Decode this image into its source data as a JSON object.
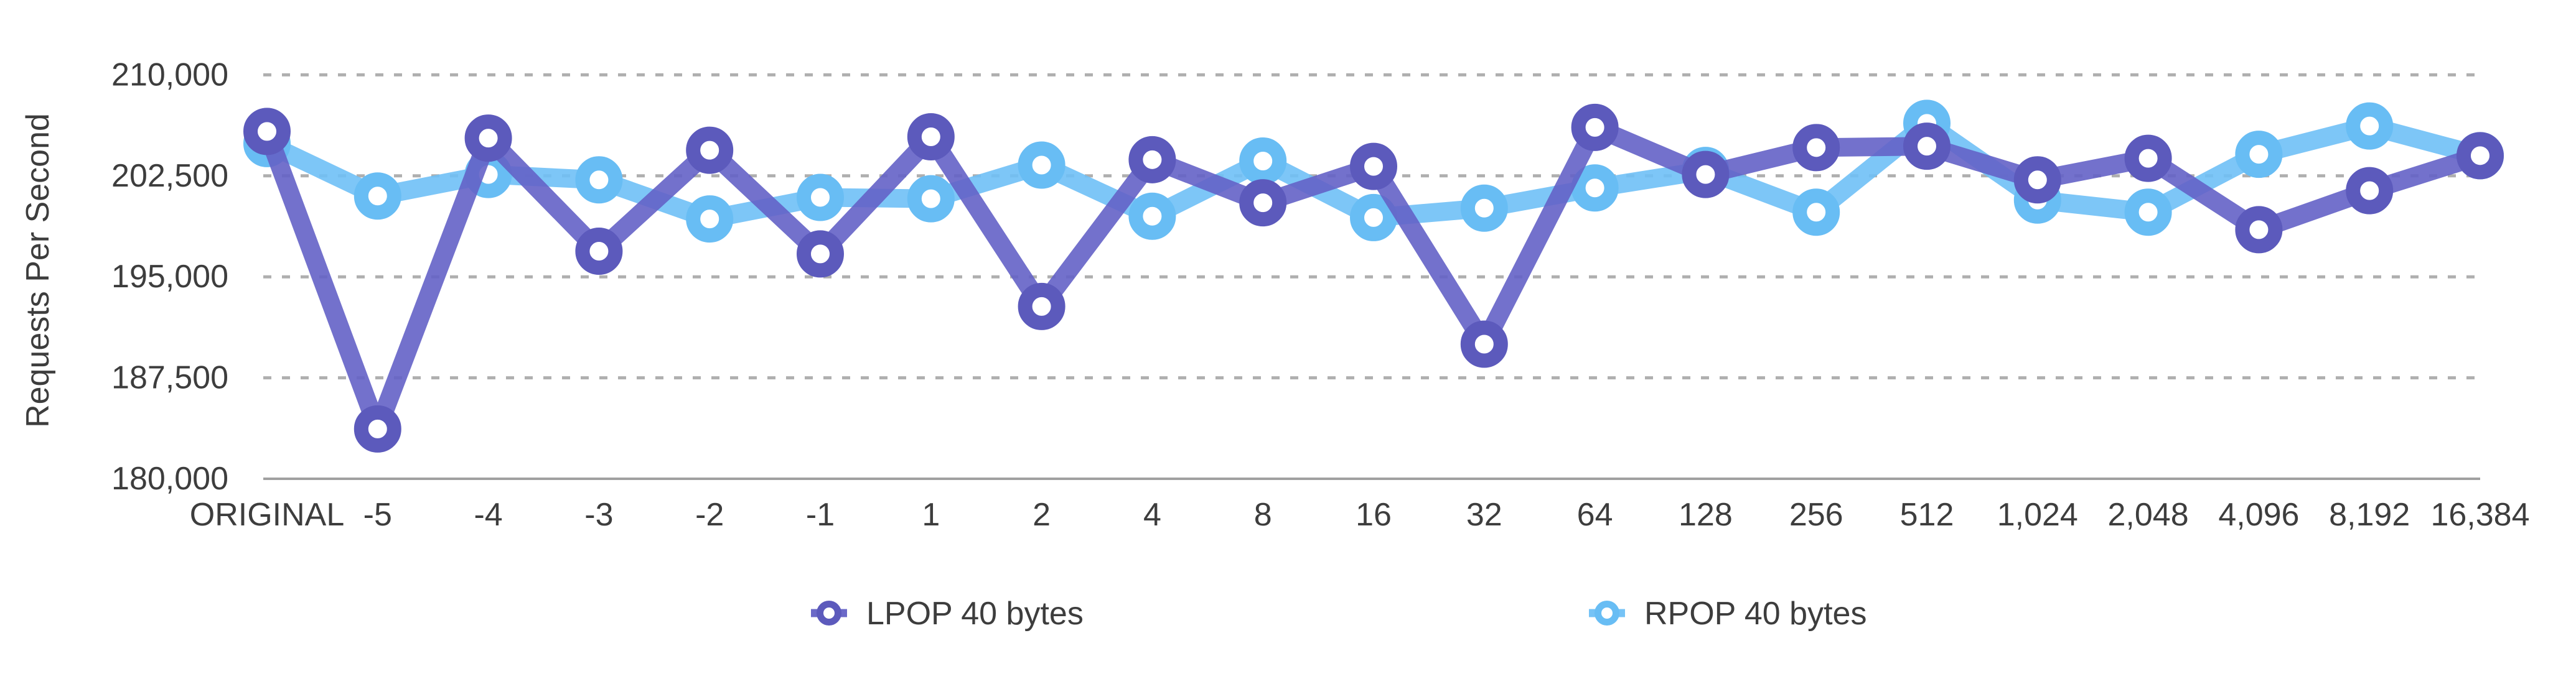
{
  "chart_data": {
    "type": "line",
    "title": "",
    "ylabel": "Requests Per Second",
    "xlabel": "",
    "categories": [
      "ORIGINAL",
      "-5",
      "-4",
      "-3",
      "-2",
      "-1",
      "1",
      "2",
      "4",
      "8",
      "16",
      "32",
      "64",
      "128",
      "256",
      "512",
      "1,024",
      "2,048",
      "4,096",
      "8,192",
      "16,384"
    ],
    "series": [
      {
        "name": "RPOP 40 bytes",
        "line_color": "#6FC0F6",
        "marker_color": "#68BDF4",
        "values": [
          204900,
          201000,
          202600,
          202200,
          199300,
          200900,
          200800,
          203300,
          199500,
          203600,
          199400,
          200100,
          201600,
          202900,
          199800,
          206400,
          200700,
          199800,
          204100,
          206200,
          204000
        ]
      },
      {
        "name": "LPOP 40 bytes",
        "line_color": "#6462C6",
        "marker_color": "#5C5ABC",
        "values": [
          205800,
          183700,
          205300,
          196900,
          204400,
          196700,
          205400,
          192800,
          203700,
          200500,
          203200,
          190000,
          206100,
          202600,
          204600,
          204700,
          202200,
          203800,
          198500,
          201400,
          204000
        ]
      }
    ],
    "y_ticks": [
      180000,
      187500,
      195000,
      202500,
      210000
    ],
    "y_tick_labels": [
      "180,000",
      "187,500",
      "195,000",
      "202,500",
      "210,000"
    ],
    "ylim": [
      180000,
      210000
    ],
    "grid": "horizontal-dotted",
    "legend_position": "bottom-center",
    "legend_order": [
      "LPOP 40 bytes",
      "RPOP 40 bytes"
    ]
  },
  "colors": {
    "background": "#FFFFFF",
    "text": "#3D3D3D",
    "gridline": "#AFAFAF",
    "axis_line": "#A0A0A0"
  }
}
